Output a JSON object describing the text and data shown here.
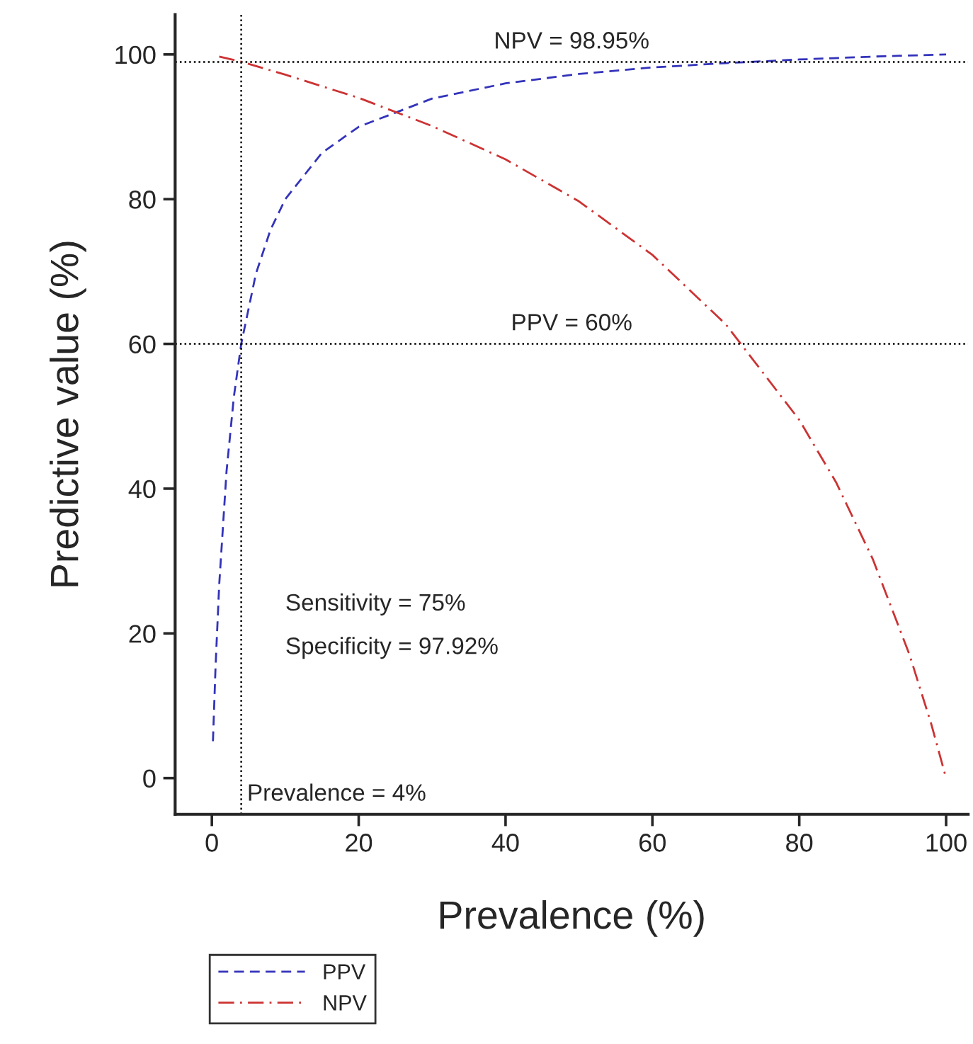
{
  "chart_data": {
    "type": "line",
    "xlabel": "Prevalence (%)",
    "ylabel": "Predictive value (%)",
    "xlim": [
      -5,
      103
    ],
    "ylim": [
      -5,
      105.5
    ],
    "xticks": [
      0,
      20,
      40,
      60,
      80,
      100
    ],
    "yticks": [
      0,
      20,
      40,
      60,
      80,
      100
    ],
    "series": [
      {
        "name": "PPV",
        "color": "#3333bb",
        "line_style": "dashed",
        "x": [
          0.15,
          0.5,
          1,
          2,
          3,
          4,
          6,
          8,
          10,
          15,
          20,
          30,
          40,
          50,
          60,
          70,
          80,
          90,
          100
        ],
        "values": [
          5.1,
          15.3,
          26.7,
          42.4,
          52.7,
          60.0,
          69.7,
          75.8,
          80.0,
          86.4,
          90.0,
          93.9,
          96.0,
          97.3,
          98.2,
          98.8,
          99.3,
          99.7,
          100
        ]
      },
      {
        "name": "NPV",
        "color": "#cc3333",
        "line_style": "dashdot",
        "x": [
          1,
          4,
          10,
          20,
          30,
          40,
          50,
          60,
          70,
          80,
          85,
          90,
          95,
          98,
          100
        ],
        "values": [
          99.7,
          99.0,
          97.2,
          94.0,
          90.1,
          85.5,
          79.7,
          72.3,
          62.7,
          49.5,
          40.9,
          30.3,
          17.1,
          7.4,
          0
        ]
      }
    ],
    "ref_lines": [
      {
        "axis": "y",
        "value": 98.95,
        "label": "NPV = 98.95%",
        "color": "#000000",
        "line_style": "dotted"
      },
      {
        "axis": "y",
        "value": 60,
        "label": "PPV = 60%",
        "color": "#000000",
        "line_style": "dotted"
      },
      {
        "axis": "x",
        "value": 4,
        "label": "Prevalence = 4%",
        "color": "#000000",
        "line_style": "dotted"
      }
    ],
    "annotations": [
      "Sensitivity = 75%",
      "Specificity = 97.92%"
    ],
    "legend": "bottom left",
    "grid": false
  }
}
